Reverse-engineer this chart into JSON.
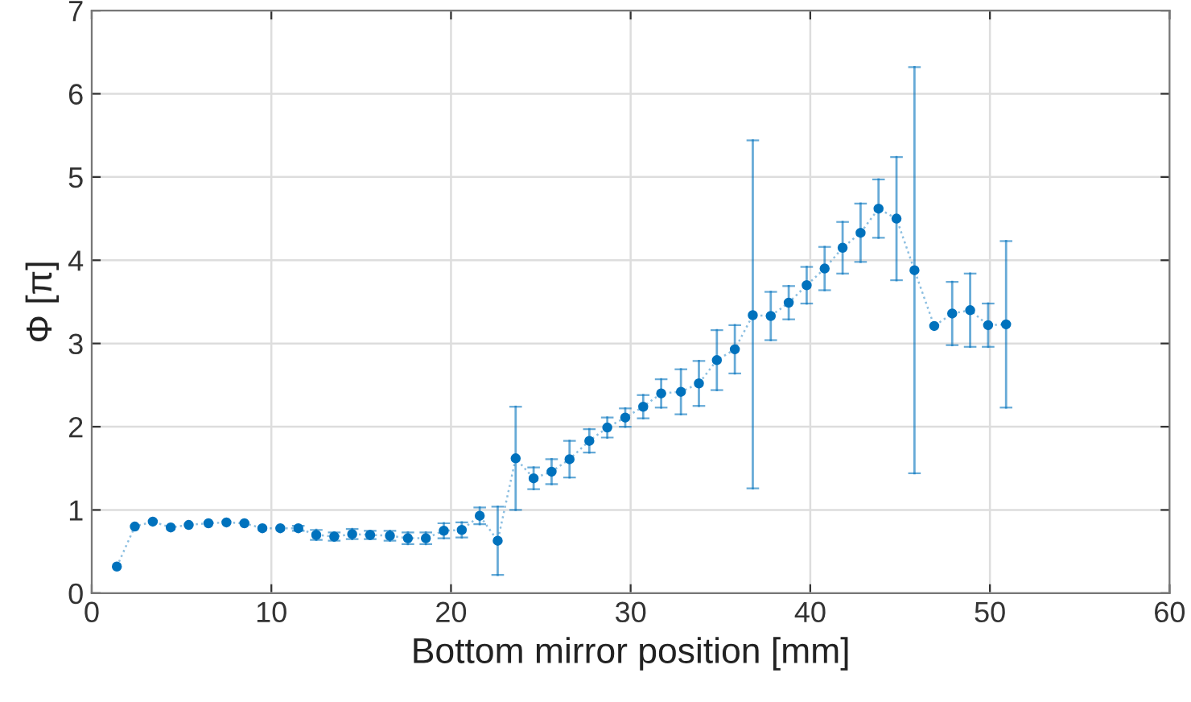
{
  "chart_data": {
    "type": "line",
    "xlabel": "Bottom mirror position [mm]",
    "ylabel": "Φ [π]",
    "xlim": [
      0,
      60
    ],
    "xticks": [
      0,
      10,
      20,
      30,
      40,
      50,
      60
    ],
    "ylim": [
      0,
      7
    ],
    "yticks": [
      0,
      1,
      2,
      3,
      4,
      5,
      6,
      7
    ],
    "grid": true,
    "marker": "circle",
    "line_style": "dotted",
    "series": [
      {
        "color": "#0072bd",
        "x": [
          1.4,
          2.4,
          3.4,
          4.4,
          5.4,
          6.5,
          7.5,
          8.5,
          9.5,
          10.5,
          11.5,
          12.5,
          13.5,
          14.5,
          15.5,
          16.6,
          17.6,
          18.6,
          19.6,
          20.6,
          21.6,
          22.6,
          23.6,
          24.6,
          25.6,
          26.6,
          27.7,
          28.7,
          29.7,
          30.7,
          31.7,
          32.8,
          33.8,
          34.8,
          35.8,
          36.8,
          37.8,
          38.8,
          39.8,
          40.8,
          41.8,
          42.8,
          43.8,
          44.8,
          45.8,
          46.9,
          47.9,
          48.9,
          49.9,
          50.9
        ],
        "values": [
          0.32,
          0.8,
          0.86,
          0.79,
          0.82,
          0.84,
          0.85,
          0.84,
          0.78,
          0.78,
          0.78,
          0.7,
          0.68,
          0.71,
          0.7,
          0.69,
          0.66,
          0.66,
          0.75,
          0.76,
          0.93,
          0.63,
          1.62,
          1.38,
          1.46,
          1.61,
          1.83,
          1.99,
          2.11,
          2.24,
          2.4,
          2.42,
          2.52,
          2.8,
          2.93,
          3.34,
          3.33,
          3.49,
          3.7,
          3.9,
          4.15,
          4.33,
          4.62,
          4.5,
          3.88,
          3.21,
          3.36,
          3.4,
          3.22,
          3.23
        ],
        "errors": [
          null,
          null,
          null,
          null,
          null,
          null,
          null,
          null,
          null,
          null,
          0.03,
          0.06,
          0.05,
          0.06,
          0.05,
          0.06,
          0.07,
          0.07,
          0.09,
          0.09,
          0.1,
          0.41,
          0.62,
          0.13,
          0.15,
          0.22,
          0.14,
          0.12,
          0.11,
          0.14,
          0.17,
          0.27,
          0.27,
          0.36,
          0.29,
          [
            1.26,
            5.44
          ],
          0.29,
          0.2,
          0.22,
          0.26,
          0.31,
          0.35,
          0.35,
          0.74,
          [
            1.44,
            6.32
          ],
          null,
          0.38,
          0.44,
          0.26,
          1.0
        ]
      }
    ]
  }
}
